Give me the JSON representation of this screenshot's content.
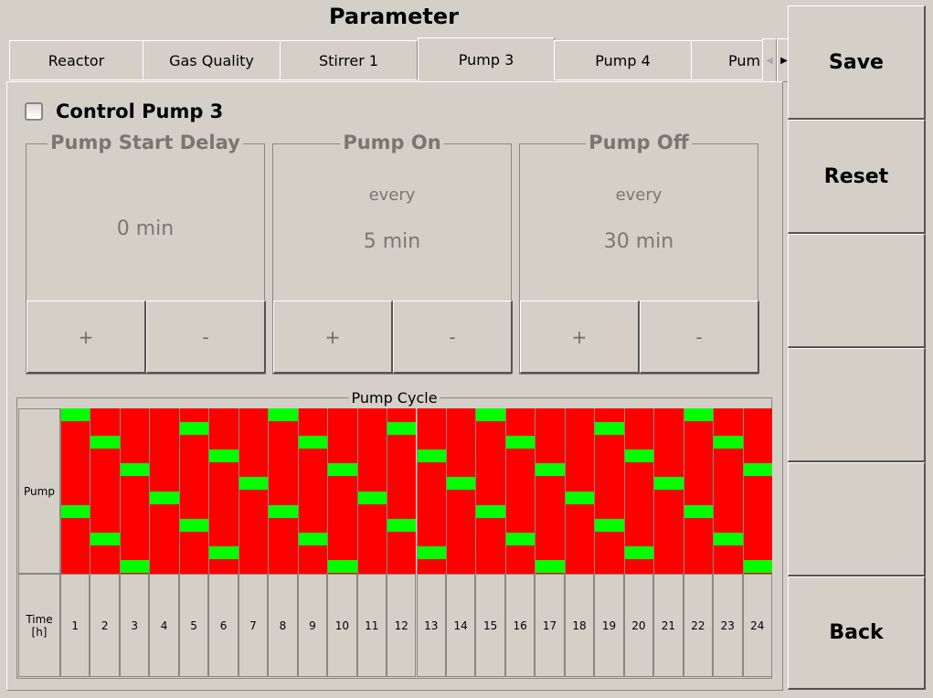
{
  "title": "Parameter",
  "tabs": [
    {
      "label": "Reactor",
      "active": false
    },
    {
      "label": "Gas Quality",
      "active": false
    },
    {
      "label": "Stirrer 1",
      "active": false
    },
    {
      "label": "Pump 3",
      "active": true
    },
    {
      "label": "Pump 4",
      "active": false
    },
    {
      "label": "Pum",
      "active": false
    }
  ],
  "tab_scroll": {
    "left_icon": "arrow-left-icon",
    "right_icon": "arrow-right-icon"
  },
  "control": {
    "label": "Control Pump 3",
    "checked": false
  },
  "groups": {
    "start_delay": {
      "title": "Pump Start Delay",
      "value": "0 min",
      "plus": "+",
      "minus": "-"
    },
    "on": {
      "title": "Pump On",
      "every": "every",
      "value": "5 min",
      "plus": "+",
      "minus": "-"
    },
    "off": {
      "title": "Pump Off",
      "every": "every",
      "value": "30 min",
      "plus": "+",
      "minus": "-"
    }
  },
  "cycle": {
    "title": "Pump Cycle",
    "row_label": "Pump",
    "time_label": "Time\n[h]",
    "hours": [
      "1",
      "2",
      "3",
      "4",
      "5",
      "6",
      "7",
      "8",
      "9",
      "10",
      "11",
      "12",
      "13",
      "14",
      "15",
      "16",
      "17",
      "18",
      "19",
      "20",
      "21",
      "22",
      "23",
      "24"
    ],
    "on_minute": 5,
    "off_minute": 30,
    "on_color": "#00ff00",
    "off_color": "#ff0000"
  },
  "side": {
    "save": "Save",
    "reset": "Reset",
    "back": "Back"
  }
}
